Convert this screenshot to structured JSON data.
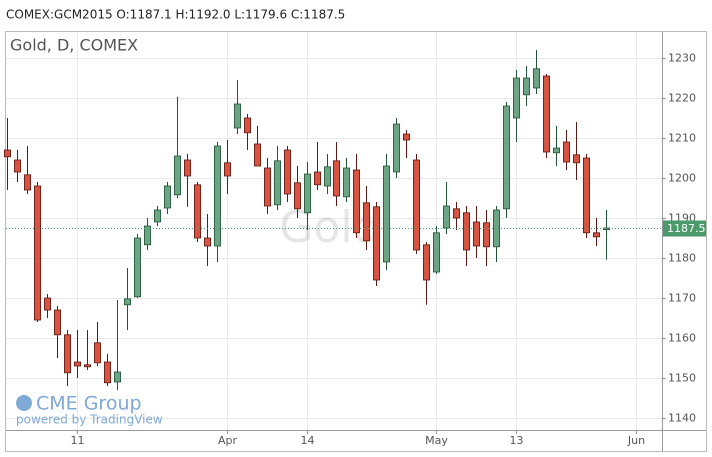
{
  "header": "COMEX:GCM2015 O:1187.1 H:1192.0 L:1179.6 C:1187.5",
  "branding": {
    "logo": "CME Group",
    "powered": "powered by TradingView"
  },
  "chart_data": {
    "type": "candlestick",
    "title": "Gold, D, COMEX",
    "watermark": "Gold",
    "up_color": "#6ba583",
    "down_color": "#d75442",
    "up_border": "#225437",
    "down_border": "#5b1a13",
    "grid": true,
    "last_price": 1187.5,
    "last_price_color": "#4a9a6a",
    "xlim": [
      -0.2,
      65.6
    ],
    "xticks": [
      {
        "value": 7,
        "label": "11"
      },
      {
        "value": 22,
        "label": "Apr"
      },
      {
        "value": 30,
        "label": "14"
      },
      {
        "value": 43,
        "label": "May"
      },
      {
        "value": 51,
        "label": "13"
      },
      {
        "value": 63,
        "label": "Jun"
      }
    ],
    "ylim": [
      1137,
      1236.25
    ],
    "yticks": [
      1140,
      1150,
      1160,
      1170,
      1180,
      1190,
      1200,
      1210,
      1220,
      1230
    ],
    "open": [
      1207,
      1204.5,
      1200.8,
      1198,
      1170,
      1167,
      1160.8,
      1154,
      1153.3,
      1158.8,
      1154,
      1149,
      1168.3,
      1170.3,
      1183.3,
      1189,
      1192.5,
      1195.8,
      1204.5,
      1198.3,
      1185,
      1183,
      1203.8,
      1212.5,
      1215,
      1208.5,
      1202.5,
      1193.3,
      1207,
      1198.8,
      1191.3,
      1201.5,
      1198,
      1204.3,
      1195.3,
      1202,
      1193.8,
      1192.8,
      1179,
      1201.5,
      1211,
      1204.5,
      1183.3,
      1176.5,
      1187.5,
      1192.3,
      1191.3,
      1189,
      1188.8,
      1182.8,
      1192.3,
      1215,
      1220.8,
      1222.5,
      1225.5,
      1206.3,
      1209,
      1205.8,
      1205,
      1186.3,
      1187.1
    ],
    "high": [
      1215,
      1207,
      1208,
      1199,
      1171,
      1168,
      1162,
      1162,
      1162,
      1164,
      1156,
      1169.5,
      1177.5,
      1186,
      1190,
      1193,
      1199,
      1220.3,
      1206,
      1199,
      1191,
      1209,
      1209.5,
      1224.5,
      1216,
      1213,
      1205,
      1208,
      1208,
      1203,
      1204,
      1209,
      1206,
      1209,
      1205,
      1206,
      1198,
      1194,
      1206,
      1215,
      1212,
      1206,
      1184,
      1188,
      1199,
      1194,
      1193,
      1193,
      1192,
      1193,
      1219,
      1227,
      1228,
      1232,
      1226,
      1213,
      1212,
      1214,
      1206,
      1190,
      1192
    ],
    "low": [
      1197,
      1199,
      1196,
      1164,
      1165,
      1155,
      1148,
      1150,
      1152,
      1153,
      1148,
      1147,
      1162,
      1170,
      1182,
      1188,
      1191,
      1195,
      1192.8,
      1184,
      1178,
      1179,
      1196,
      1211,
      1207,
      1203,
      1191,
      1192,
      1194,
      1190,
      1187,
      1197,
      1196,
      1193,
      1194,
      1185,
      1182,
      1173,
      1177,
      1200,
      1205,
      1181,
      1168.3,
      1176,
      1186,
      1187,
      1178,
      1180,
      1178,
      1179,
      1190,
      1209,
      1218,
      1221,
      1205,
      1203,
      1202,
      1199.5,
      1185,
      1183,
      1179.6
    ],
    "close": [
      1205.3,
      1201.5,
      1197,
      1164.5,
      1167,
      1160.8,
      1151.3,
      1153,
      1152.8,
      1153.8,
      1148.8,
      1151.5,
      1169.8,
      1185,
      1188,
      1192,
      1198,
      1205.5,
      1200.5,
      1185,
      1183,
      1208,
      1200.5,
      1218.5,
      1211.3,
      1203,
      1193,
      1204.3,
      1196,
      1192.3,
      1201,
      1198.3,
      1202.8,
      1195.5,
      1202.5,
      1186.3,
      1184.3,
      1174.5,
      1203,
      1213.5,
      1209.5,
      1182,
      1174.5,
      1186.3,
      1193,
      1190,
      1182,
      1183,
      1182.8,
      1192,
      1218,
      1225,
      1225,
      1227.3,
      1206.5,
      1207.5,
      1204,
      1203.8,
      1186.3,
      1185.3,
      1187.5
    ]
  }
}
